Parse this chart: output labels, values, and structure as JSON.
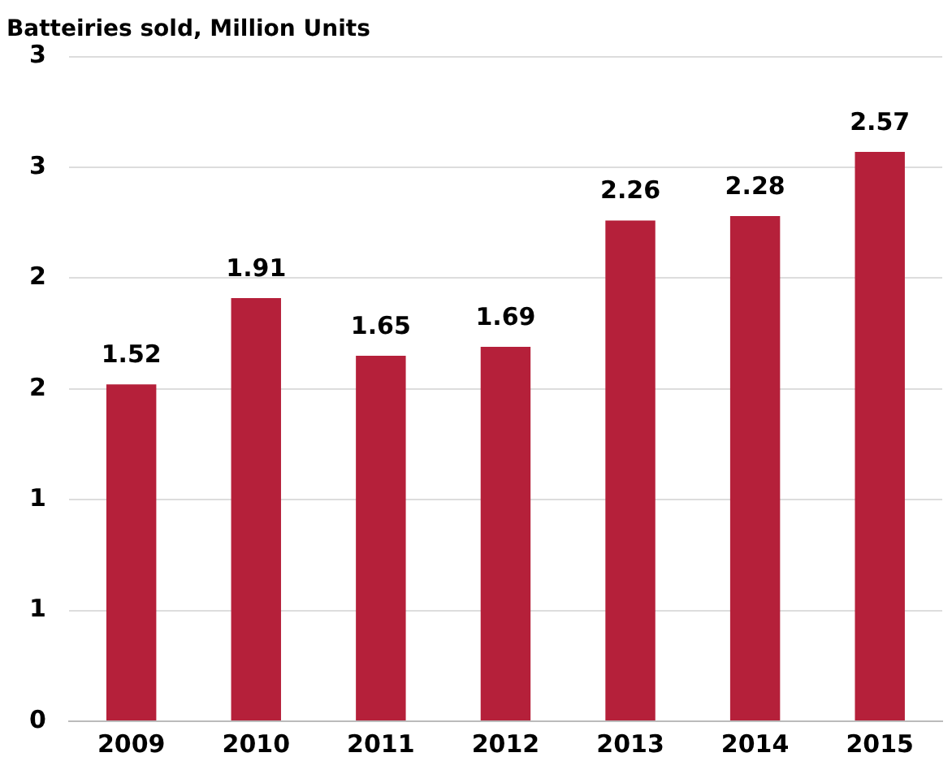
{
  "chart_data": {
    "type": "bar",
    "title": "Batteiries sold, Million Units",
    "categories": [
      "2009",
      "2010",
      "2011",
      "2012",
      "2013",
      "2014",
      "2015"
    ],
    "values": [
      1.52,
      1.91,
      1.65,
      1.69,
      2.26,
      2.28,
      2.57
    ],
    "color": "#b5203a",
    "ylim": [
      0,
      3
    ],
    "yticks": [
      0,
      {
        "value": 0.5,
        "label": "1"
      },
      1,
      {
        "value": 1.5,
        "label": "2"
      },
      2,
      {
        "value": 2.5,
        "label": "3"
      },
      3
    ],
    "grid": "y",
    "data_labels": true
  }
}
